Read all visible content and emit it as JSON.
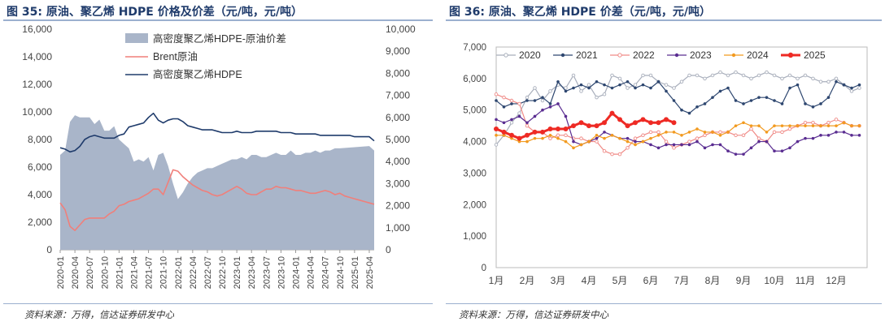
{
  "left": {
    "title": "图 35:  原油、聚乙烯 HDPE 价格及价差（元/吨，元/吨）",
    "source": "资料来源：万得，信达证券研发中心",
    "chart_data": {
      "type": "area",
      "x_ticks": [
        "2020-01",
        "2020-04",
        "2020-07",
        "2020-10",
        "2021-01",
        "2021-04",
        "2021-07",
        "2021-10",
        "2022-01",
        "2022-04",
        "2022-07",
        "2022-10",
        "2023-01",
        "2023-04",
        "2023-07",
        "2023-10",
        "2024-01",
        "2024-04",
        "2024-07",
        "2024-10",
        "2025-01",
        "2025-04"
      ],
      "y_left": {
        "ticks": [
          "0",
          "2,000",
          "4,000",
          "6,000",
          "8,000",
          "10,000",
          "12,000",
          "14,000",
          "16,000"
        ],
        "lim": [
          0,
          16000
        ]
      },
      "y_right": {
        "ticks": [
          "0",
          "1,000",
          "2,000",
          "3,000",
          "4,000",
          "5,000",
          "6,000",
          "7,000",
          "8,000",
          "9,000",
          "10,000"
        ],
        "lim": [
          0,
          10000
        ]
      },
      "legend": [
        "高密度聚乙烯HDPE-原油价差",
        "Brent原油",
        "高密度聚乙烯HDPE"
      ],
      "series": [
        {
          "name": "高密度聚乙烯HDPE-原油价差",
          "axis": "right",
          "color": "#a9b5c9",
          "x": [
            0,
            1,
            2,
            3,
            4,
            5,
            6,
            7,
            8,
            9,
            10,
            11,
            12,
            13,
            14,
            15,
            16,
            17,
            18,
            19,
            20,
            21,
            22,
            23,
            24,
            25,
            26,
            27,
            28,
            29,
            30,
            31,
            32,
            33,
            34,
            35,
            36,
            37,
            38,
            39,
            40,
            41,
            42,
            43,
            44,
            45,
            46,
            47,
            48,
            49,
            50,
            51,
            52,
            53,
            54,
            55,
            56,
            57,
            63,
            64
          ],
          "values": [
            4300,
            4500,
            5800,
            6100,
            6000,
            6000,
            6000,
            5700,
            5900,
            5400,
            5400,
            5600,
            5000,
            4800,
            4600,
            4000,
            4100,
            4000,
            4200,
            3600,
            4300,
            4400,
            3800,
            3000,
            2300,
            2600,
            3000,
            3300,
            3500,
            3600,
            3700,
            3700,
            3800,
            3900,
            4000,
            4100,
            4100,
            4200,
            4100,
            4300,
            4300,
            4200,
            4200,
            4300,
            4400,
            4300,
            4300,
            4500,
            4300,
            4300,
            4400,
            4400,
            4500,
            4400,
            4500,
            4500,
            4600,
            4600,
            4700,
            4500
          ]
        },
        {
          "name": "Brent原油",
          "axis": "left",
          "color": "#f07f7a",
          "x": [
            0,
            1,
            2,
            3,
            4,
            5,
            6,
            7,
            8,
            9,
            10,
            11,
            12,
            13,
            14,
            15,
            16,
            17,
            18,
            19,
            20,
            21,
            22,
            23,
            24,
            25,
            26,
            27,
            28,
            29,
            30,
            31,
            32,
            33,
            34,
            35,
            36,
            37,
            38,
            39,
            40,
            41,
            42,
            43,
            44,
            45,
            46,
            47,
            48,
            49,
            50,
            51,
            52,
            53,
            54,
            55,
            56,
            57,
            58,
            59,
            60,
            61,
            62,
            63,
            64
          ],
          "values": [
            3400,
            2900,
            1700,
            1400,
            1800,
            2200,
            2300,
            2300,
            2300,
            2300,
            2600,
            2800,
            3200,
            3300,
            3500,
            3600,
            3700,
            3900,
            4100,
            4400,
            4400,
            4000,
            4900,
            5800,
            5700,
            5300,
            5000,
            4700,
            4500,
            4300,
            4200,
            4000,
            3900,
            4000,
            4200,
            4400,
            4600,
            4400,
            4100,
            4000,
            4000,
            4200,
            4400,
            4400,
            4600,
            4500,
            4500,
            4400,
            4300,
            4300,
            4200,
            4100,
            4100,
            4200,
            4300,
            4200,
            4000,
            4100,
            3900,
            3800,
            3700,
            3600,
            3500,
            3400,
            3300
          ]
        },
        {
          "name": "高密度聚乙烯HDPE",
          "axis": "left",
          "color": "#1f3b6b",
          "x": [
            0,
            1,
            2,
            3,
            4,
            5,
            6,
            7,
            8,
            9,
            10,
            11,
            12,
            13,
            14,
            15,
            16,
            17,
            18,
            19,
            20,
            21,
            22,
            23,
            24,
            25,
            26,
            27,
            28,
            29,
            30,
            31,
            32,
            33,
            34,
            35,
            36,
            37,
            38,
            39,
            40,
            41,
            42,
            43,
            44,
            45,
            46,
            47,
            48,
            49,
            50,
            51,
            52,
            53,
            54,
            55,
            56,
            57,
            58,
            59,
            60,
            61,
            62,
            63,
            64
          ],
          "values": [
            7400,
            7300,
            7100,
            7200,
            7500,
            8000,
            8200,
            8300,
            8200,
            8100,
            8100,
            8100,
            8300,
            8400,
            8900,
            9000,
            9100,
            9200,
            9600,
            9900,
            9400,
            9200,
            9400,
            9500,
            9500,
            9300,
            9000,
            8900,
            8800,
            8700,
            8700,
            8700,
            8600,
            8500,
            8500,
            8500,
            8600,
            8500,
            8500,
            8500,
            8600,
            8600,
            8600,
            8600,
            8600,
            8500,
            8500,
            8500,
            8400,
            8400,
            8400,
            8400,
            8400,
            8300,
            8300,
            8300,
            8300,
            8300,
            8300,
            8300,
            8200,
            8200,
            8200,
            8200,
            7900
          ]
        }
      ]
    }
  },
  "right": {
    "title": "图 36:  原油、聚乙烯 HDPE 价差（元/吨，元/吨）",
    "source": "资料来源：万得，信达证券研发中心",
    "chart_data": {
      "type": "line",
      "x_ticks": [
        "1月",
        "2月",
        "3月",
        "4月",
        "5月",
        "6月",
        "7月",
        "8月",
        "9月",
        "10月",
        "11月",
        "12月"
      ],
      "y_ticks": [
        "0",
        "1,000",
        "2,000",
        "3,000",
        "4,000",
        "5,000",
        "6,000",
        "7,000"
      ],
      "ylim": [
        0,
        7000
      ],
      "series": [
        {
          "name": "2020",
          "color": "#a8aebb",
          "marker": "circle-open",
          "values": [
            3900,
            4200,
            4600,
            4900,
            5400,
            5700,
            5300,
            5600,
            5800,
            5700,
            6100,
            5600,
            5800,
            5400,
            5500,
            6100,
            6000,
            5700,
            5800,
            6100,
            6100,
            5900,
            5800,
            5700,
            5900,
            6100,
            6100,
            6000,
            6100,
            6200,
            6100,
            6200,
            6100,
            6000,
            6100,
            6200,
            6100,
            6000,
            6100,
            6000,
            6100,
            6000,
            5900,
            5900,
            6000,
            5800,
            5600,
            5700
          ]
        },
        {
          "name": "2021",
          "color": "#2e4770",
          "marker": "dot",
          "values": [
            5300,
            5100,
            5200,
            5200,
            5300,
            5300,
            5400,
            5200,
            5900,
            5600,
            5700,
            5800,
            5700,
            5900,
            5800,
            5700,
            5800,
            5900,
            5700,
            5800,
            5700,
            5900,
            5600,
            5300,
            5000,
            4900,
            5100,
            5200,
            5400,
            5600,
            5700,
            5300,
            5200,
            5300,
            5400,
            5400,
            5300,
            5200,
            5700,
            5800,
            5200,
            5100,
            5200,
            5400,
            5900,
            5800,
            5700,
            5800
          ]
        },
        {
          "name": "2022",
          "color": "#f08a86",
          "marker": "circle-open",
          "values": [
            5500,
            5400,
            5300,
            5200,
            4500,
            4300,
            4300,
            4100,
            4200,
            4200,
            4100,
            4100,
            4000,
            4000,
            3700,
            3600,
            3600,
            3800,
            4100,
            4200,
            4300,
            4300,
            4000,
            3800,
            3900,
            4000,
            4100,
            4200,
            4300,
            4300,
            4300,
            4200,
            4200,
            4400,
            4100,
            4000,
            4300,
            4300,
            4400,
            4500,
            4600,
            4600,
            4500,
            4600,
            4700,
            4600,
            4500,
            4500
          ]
        },
        {
          "name": "2023",
          "color": "#5a2d91",
          "marker": "dot",
          "values": [
            4700,
            4600,
            4700,
            4800,
            4600,
            4800,
            5000,
            5100,
            5200,
            4800,
            4000,
            3900,
            4000,
            4100,
            4300,
            4200,
            4100,
            4100,
            4000,
            4000,
            3900,
            3800,
            3900,
            3900,
            3900,
            3900,
            4000,
            3800,
            3900,
            3900,
            3700,
            3600,
            3600,
            3800,
            4000,
            4000,
            3700,
            3700,
            3800,
            4000,
            4100,
            4100,
            4200,
            4200,
            4300,
            4300,
            4200,
            4200
          ]
        },
        {
          "name": "2024",
          "color": "#f29a1f",
          "marker": "dot",
          "values": [
            4200,
            4200,
            4100,
            4000,
            4000,
            4100,
            4100,
            4200,
            4100,
            4000,
            3800,
            3900,
            4000,
            4200,
            4100,
            4200,
            4100,
            4000,
            3900,
            4000,
            4100,
            4200,
            4300,
            4300,
            4200,
            4300,
            4400,
            4300,
            4300,
            4200,
            4300,
            4500,
            4600,
            4500,
            4500,
            4300,
            4500,
            4500,
            4500,
            4500,
            4500,
            4500,
            4500,
            4500,
            4500,
            4600,
            4500,
            4500
          ]
        },
        {
          "name": "2025",
          "color": "#ee2a24",
          "marker": "dot-bold",
          "width": 3,
          "values": [
            4400,
            4300,
            4200,
            4100,
            4200,
            4300,
            4300,
            4400,
            4400,
            4400,
            4500,
            4600,
            4500,
            4500,
            4600,
            4900,
            4700,
            4500,
            4600,
            4700,
            4600,
            4600,
            4700,
            4600
          ]
        }
      ]
    }
  }
}
